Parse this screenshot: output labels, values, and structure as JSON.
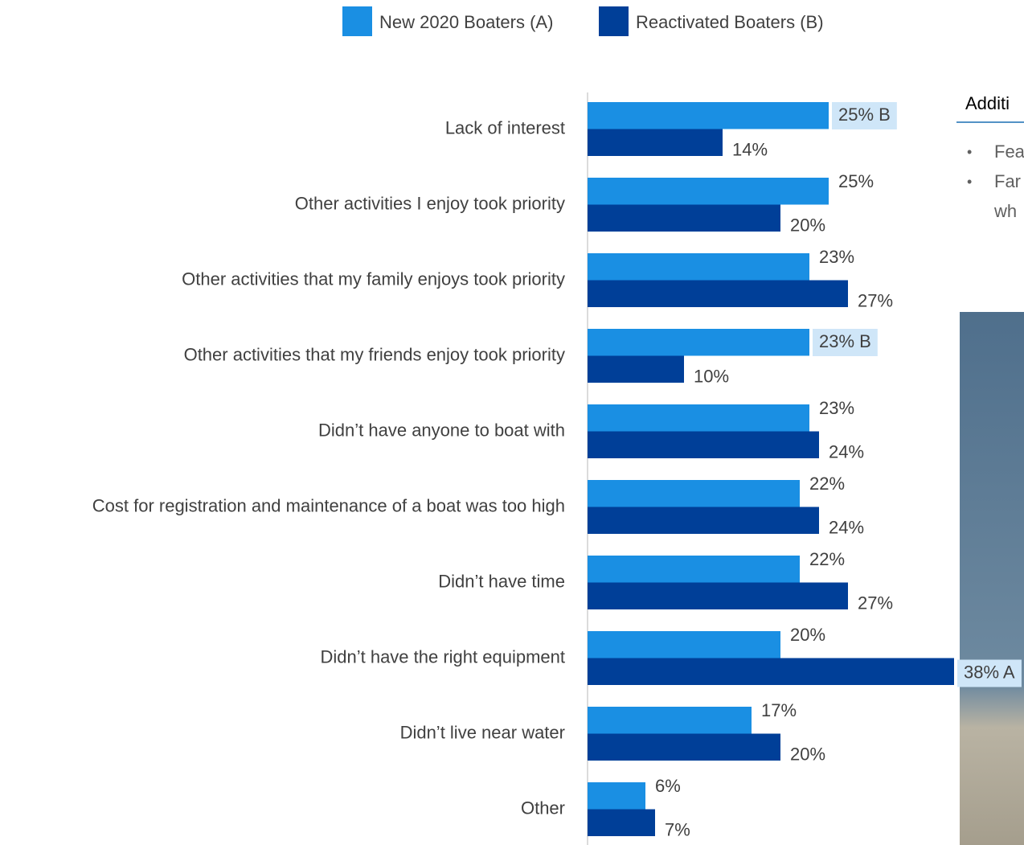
{
  "chart_data": {
    "type": "bar",
    "orientation": "horizontal",
    "categories": [
      "Lack of interest",
      "Other activities I enjoy took priority",
      "Other activities that my family enjoys took priority",
      "Other activities that my friends enjoy took priority",
      "Didn’t have anyone to boat with",
      "Cost for registration and maintenance of a boat was too high",
      "Didn’t have time",
      "Didn’t have the right equipment",
      "Didn’t live near water",
      "Other"
    ],
    "series": [
      {
        "name": "New 2020 Boaters (A)",
        "color": "#1a8fe3",
        "values": [
          25,
          25,
          23,
          23,
          23,
          22,
          22,
          20,
          17,
          6
        ],
        "value_labels": [
          "25% B",
          "25%",
          "23%",
          "23% B",
          "23%",
          "22%",
          "22%",
          "20%",
          "17%",
          "6%"
        ]
      },
      {
        "name": "Reactivated Boaters (B)",
        "color": "#003f98",
        "values": [
          14,
          20,
          27,
          10,
          24,
          24,
          27,
          38,
          20,
          7
        ],
        "value_labels": [
          "14%",
          "20%",
          "27%",
          "10%",
          "24%",
          "24%",
          "27%",
          "38% A",
          "20%",
          "7%"
        ]
      }
    ],
    "highlight_color": "#cfe6f8",
    "legend": "top"
  },
  "side_panel": {
    "title": "Additi",
    "bullets": [
      {
        "lines": [
          "Fea"
        ]
      },
      {
        "lines": [
          "Far",
          "wh"
        ]
      }
    ]
  }
}
